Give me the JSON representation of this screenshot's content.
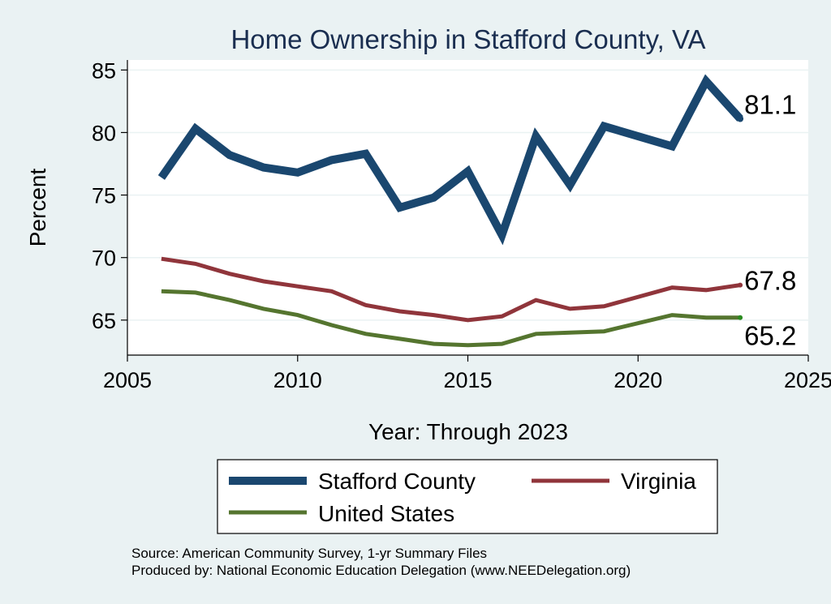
{
  "chart_data": {
    "type": "line",
    "title": "Home Ownership in Stafford County, VA",
    "xlabel": "Year: Through 2023",
    "ylabel": "Percent",
    "xlim": [
      2005,
      2025
    ],
    "ylim": [
      62.2,
      85.8
    ],
    "xticks": [
      2005,
      2010,
      2015,
      2020,
      2025
    ],
    "yticks": [
      65,
      70,
      75,
      80,
      85
    ],
    "grid": true,
    "legend_position": "bottom",
    "series": [
      {
        "name": "Stafford County",
        "color": "#1a476f",
        "x": [
          2006,
          2007,
          2008,
          2009,
          2010,
          2011,
          2012,
          2013,
          2014,
          2015,
          2016,
          2017,
          2018,
          2019,
          2021,
          2022,
          2023
        ],
        "values": [
          76.4,
          80.3,
          78.2,
          77.2,
          76.8,
          77.8,
          78.3,
          74.0,
          74.8,
          76.9,
          71.8,
          79.7,
          75.8,
          80.5,
          78.9,
          84.1,
          81.1
        ],
        "end_label": "81.1"
      },
      {
        "name": "Virginia",
        "color": "#90353b",
        "x": [
          2006,
          2007,
          2008,
          2009,
          2010,
          2011,
          2012,
          2013,
          2014,
          2015,
          2016,
          2017,
          2018,
          2019,
          2021,
          2022,
          2023
        ],
        "values": [
          69.9,
          69.5,
          68.7,
          68.1,
          67.7,
          67.3,
          66.2,
          65.7,
          65.4,
          65.0,
          65.3,
          66.6,
          65.9,
          66.1,
          67.6,
          67.4,
          67.8
        ],
        "end_label": "67.8"
      },
      {
        "name": "United States",
        "color": "#55752f",
        "x": [
          2006,
          2007,
          2008,
          2009,
          2010,
          2011,
          2012,
          2013,
          2014,
          2015,
          2016,
          2017,
          2018,
          2019,
          2021,
          2022,
          2023
        ],
        "values": [
          67.3,
          67.2,
          66.6,
          65.9,
          65.4,
          64.6,
          63.9,
          63.5,
          63.1,
          63.0,
          63.1,
          63.9,
          64.0,
          64.1,
          65.4,
          65.2,
          65.2
        ],
        "end_label": "65.2"
      }
    ],
    "notes": [
      "Source: American Community Survey, 1-yr Summary Files",
      "Produced by: National Economic Education Delegation (www.NEEDelegation.org)"
    ]
  }
}
